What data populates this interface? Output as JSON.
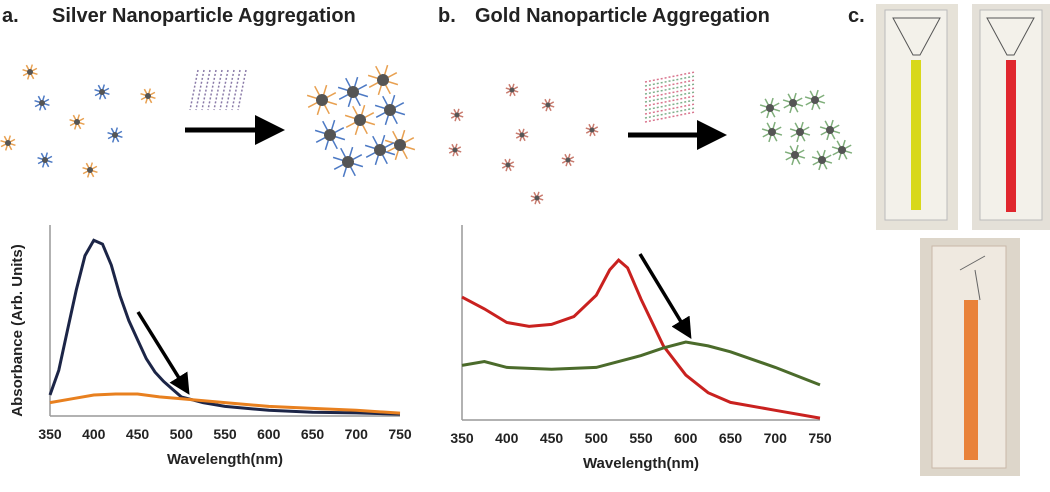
{
  "panels": [
    {
      "label": "a."
    },
    {
      "label": "b."
    },
    {
      "label": "c."
    }
  ],
  "chart_data": [
    {
      "type": "line",
      "title": "Silver Nanoparticle Aggregation",
      "x_label": "Wavelength(nm)",
      "y_label": "Absorbance (Arb. Units)",
      "xlim": [
        350,
        750
      ],
      "xticks": [
        350,
        400,
        450,
        500,
        550,
        600,
        650,
        700,
        750
      ],
      "ylim": [
        0,
        1
      ],
      "series": [
        {
          "color": "#1c2547",
          "x": [
            350,
            360,
            370,
            380,
            390,
            400,
            410,
            420,
            430,
            440,
            450,
            460,
            470,
            480,
            490,
            500,
            525,
            550,
            600,
            650,
            700,
            750
          ],
          "values": [
            0.11,
            0.24,
            0.45,
            0.66,
            0.84,
            0.92,
            0.9,
            0.79,
            0.63,
            0.5,
            0.4,
            0.3,
            0.23,
            0.18,
            0.14,
            0.1,
            0.07,
            0.05,
            0.03,
            0.02,
            0.016,
            0.01
          ]
        },
        {
          "color": "#e8801f",
          "x": [
            350,
            375,
            400,
            425,
            450,
            475,
            500,
            550,
            600,
            650,
            700,
            750
          ],
          "values": [
            0.07,
            0.09,
            0.11,
            0.115,
            0.115,
            0.1,
            0.09,
            0.07,
            0.05,
            0.04,
            0.03,
            0.015
          ]
        }
      ]
    },
    {
      "type": "line",
      "title": "Gold Nanoparticle Aggregation",
      "x_label": "Wavelength(nm)",
      "xlim": [
        350,
        750
      ],
      "xticks": [
        350,
        400,
        450,
        500,
        550,
        600,
        650,
        700,
        750
      ],
      "ylim": [
        0,
        1
      ],
      "series": [
        {
          "color": "#c9211f",
          "x": [
            350,
            375,
            400,
            425,
            450,
            475,
            500,
            515,
            525,
            535,
            550,
            575,
            600,
            625,
            650,
            700,
            750
          ],
          "values": [
            0.63,
            0.57,
            0.5,
            0.48,
            0.49,
            0.53,
            0.64,
            0.77,
            0.82,
            0.78,
            0.62,
            0.38,
            0.23,
            0.14,
            0.09,
            0.05,
            0.01
          ]
        },
        {
          "color": "#4b6b2b",
          "x": [
            350,
            375,
            400,
            450,
            500,
            550,
            575,
            600,
            625,
            650,
            700,
            750
          ],
          "values": [
            0.28,
            0.3,
            0.27,
            0.26,
            0.27,
            0.33,
            0.37,
            0.4,
            0.38,
            0.35,
            0.27,
            0.18
          ]
        }
      ]
    }
  ]
}
